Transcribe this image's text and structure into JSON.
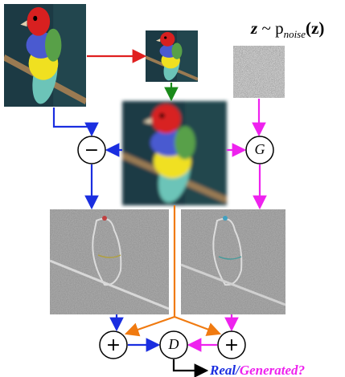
{
  "noise_label": {
    "z": "z",
    "tilde": "~",
    "p": "p",
    "sub": "noise",
    "arg": "(z)"
  },
  "nodes": [
    {
      "label": "−"
    },
    {
      "label": "G"
    },
    {
      "label": "+"
    },
    {
      "label": "D"
    },
    {
      "label": "+"
    }
  ],
  "output": {
    "real": "Real",
    "slash": "/",
    "generated": "Generated",
    "question": "?"
  }
}
